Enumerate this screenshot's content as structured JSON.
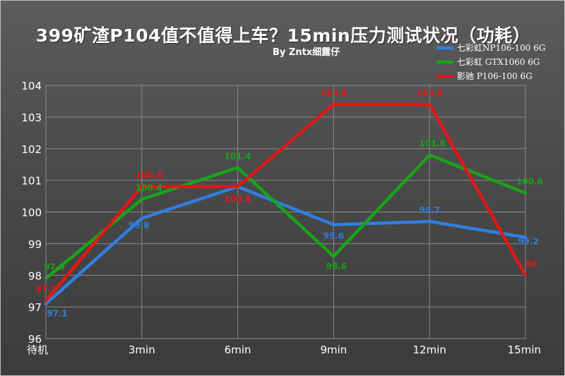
{
  "chart_data": {
    "type": "line",
    "title": "399矿渣P104值不值得上车？15min压力测试状况（功耗）",
    "subtitle": "By Zntx细露仔",
    "categories": [
      "待机",
      "3min",
      "6min",
      "9min",
      "12min",
      "15min"
    ],
    "ylim": [
      96,
      104
    ],
    "yticks": [
      "96",
      "97",
      "98",
      "99",
      "100",
      "101",
      "102",
      "103",
      "104"
    ],
    "grid": true,
    "legend_position": "top-right",
    "series": [
      {
        "name": "七彩虹NP106-100 6G",
        "color": "#2f7fe0",
        "values": [
          97.1,
          99.8,
          100.8,
          99.6,
          99.7,
          99.2
        ],
        "labels": [
          "97.1",
          "99.8",
          "100.8",
          "99.6",
          "99.7",
          "99.2"
        ]
      },
      {
        "name": "七彩虹 GTX1060 6G",
        "color": "#18a418",
        "values": [
          97.9,
          100.4,
          101.4,
          98.6,
          101.8,
          100.6
        ],
        "labels": [
          "97.9",
          "100.4",
          "101.4",
          "98.6",
          "101.8",
          "100.6"
        ]
      },
      {
        "name": "影驰 P106-100 6G",
        "color": "#e01818",
        "values": [
          97.2,
          100.8,
          100.8,
          103.4,
          103.4,
          98
        ],
        "labels": [
          "97.2",
          "100.8",
          "100.8",
          "103.4",
          "103.4",
          "98"
        ]
      }
    ]
  }
}
